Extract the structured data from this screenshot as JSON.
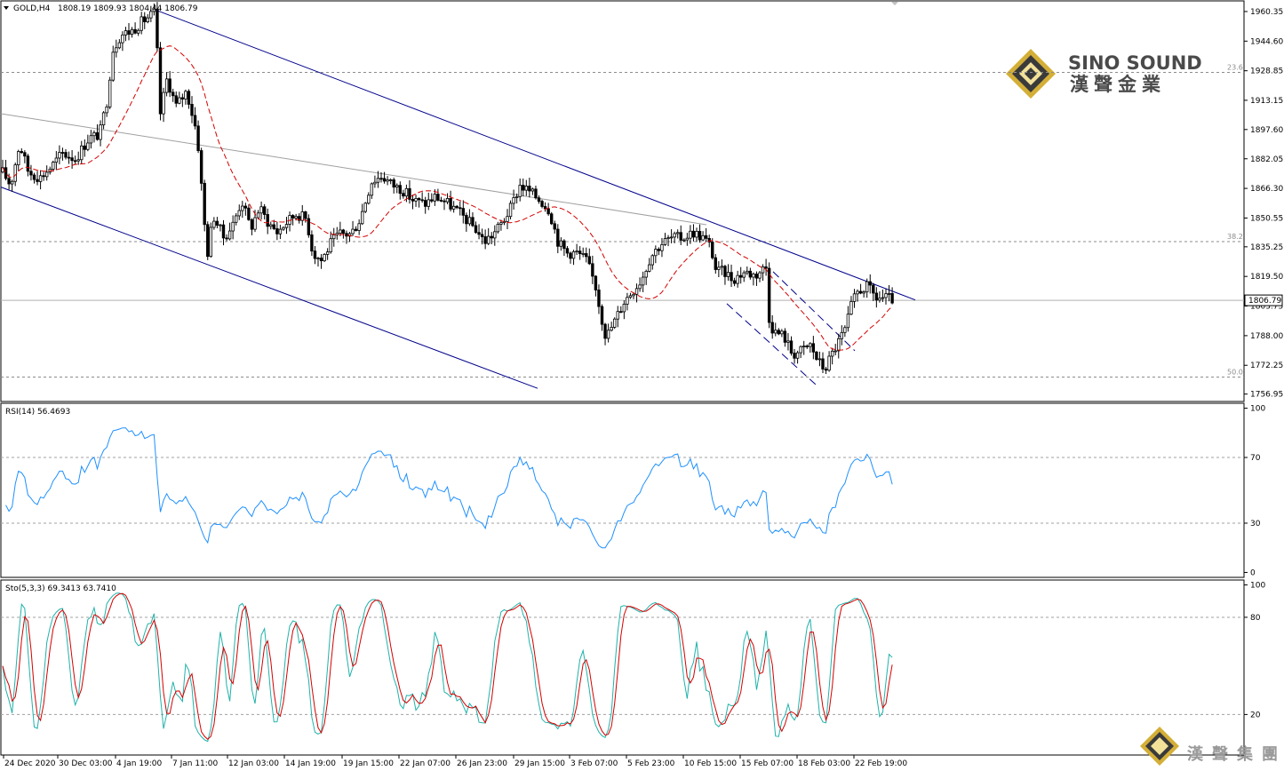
{
  "main": {
    "symbol_label": "GOLD,H4",
    "ohlc": "1808.19 1809.93 1804.44 1806.79",
    "price_axis": [
      "1960.35",
      "1944.60",
      "1928.85",
      "1913.15",
      "1897.60",
      "1882.05",
      "1866.30",
      "1850.55",
      "1835.25",
      "1819.50",
      "1803.75",
      "1788.00",
      "1772.25",
      "1756.95"
    ],
    "current_price": "1806.79",
    "fib_levels": [
      {
        "label": "23.6",
        "value": 1928.0
      },
      {
        "label": "38.2",
        "value": 1838.0
      },
      {
        "label": "50.0",
        "value": 1766.0
      }
    ]
  },
  "rsi": {
    "label": "RSI(14) 56.4693",
    "axis": [
      "100",
      "70",
      "30",
      "0"
    ],
    "levels": [
      70,
      30
    ]
  },
  "stoch": {
    "label": "Sto(5,3,3) 69.3413 63.7410",
    "axis": [
      "100",
      "80",
      "20"
    ],
    "levels": [
      80,
      20
    ]
  },
  "time_axis": [
    "24 Dec 2020",
    "30 Dec 03:00",
    "4 Jan 19:00",
    "7 Jan 11:00",
    "12 Jan 03:00",
    "14 Jan 19:00",
    "19 Jan 15:00",
    "22 Jan 07:00",
    "26 Jan 23:00",
    "29 Jan 15:00",
    "3 Feb 07:00",
    "5 Feb 23:00",
    "10 Feb 15:00",
    "15 Feb 07:00",
    "18 Feb 03:00",
    "22 Feb 19:00"
  ],
  "logo": {
    "brand": "SINO SOUND",
    "brand_cn": "漢聲金業",
    "watermark_cn": "漢聲集團"
  },
  "colors": {
    "channel": "#00008b",
    "ma": "#d40000",
    "rsi": "#1e90ff",
    "stoch_main": "#20b2aa",
    "stoch_signal": "#d40000",
    "grid": "#a0a0a0"
  }
}
